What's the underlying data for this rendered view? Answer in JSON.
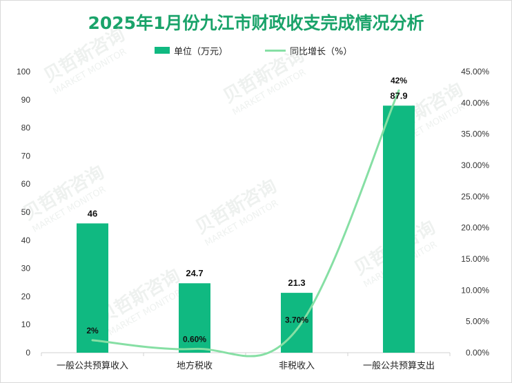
{
  "title": "2025年1月份九江市财政收支完成情况分析",
  "legend": {
    "bar_label": "单位（万元）",
    "line_label": "同比增长（%）"
  },
  "watermark": {
    "text_cn": "贝哲斯咨询",
    "text_en": "MARKET MONITOR"
  },
  "colors": {
    "bar": "#10b981",
    "line": "#86dfa4",
    "title": "#1aa36a"
  },
  "chart_data": {
    "type": "bar",
    "title": "2025年1月份九江市财政收支完成情况分析",
    "categories": [
      "一般公共预算收入",
      "地方税收",
      "非税收入",
      "一般公共预算支出"
    ],
    "series": [
      {
        "name": "单位（万元）",
        "type": "bar",
        "axis": "left",
        "values": [
          46,
          24.7,
          21.3,
          87.9
        ],
        "labels": [
          "46",
          "24.7",
          "21.3",
          "87.9"
        ]
      },
      {
        "name": "同比增长（%）",
        "type": "line",
        "axis": "right",
        "values": [
          2,
          0.6,
          3.7,
          42
        ],
        "labels": [
          "2%",
          "0.60%",
          "3.70%",
          "42%"
        ]
      }
    ],
    "y_left": {
      "min": 0,
      "max": 100,
      "step": 10,
      "ticks": [
        "0",
        "10",
        "20",
        "30",
        "40",
        "50",
        "60",
        "70",
        "80",
        "90",
        "100"
      ]
    },
    "y_right": {
      "min": 0,
      "max": 45,
      "step": 5,
      "ticks": [
        "0.00%",
        "5.00%",
        "10.00%",
        "15.00%",
        "20.00%",
        "25.00%",
        "30.00%",
        "35.00%",
        "40.00%",
        "45.00%"
      ]
    },
    "grid": false,
    "legend_position": "top-center"
  }
}
